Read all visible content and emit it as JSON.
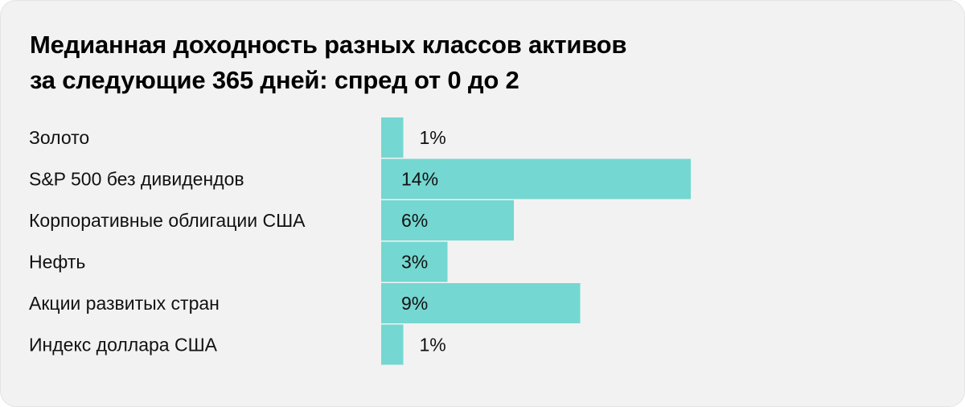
{
  "title_lines": [
    "Медианная доходность разных классов активов",
    "за следующие 365 дней: спред от 0 до 2"
  ],
  "colors": {
    "bar": "#75d7d1",
    "background": "#f2f2f2",
    "text": "#111111"
  },
  "chart_data": {
    "type": "bar",
    "orientation": "horizontal",
    "title": "Медианная доходность разных классов активов за следующие 365 дней: спред от 0 до 2",
    "categories": [
      "Золото",
      "S&P 500 без дивидендов",
      "Корпоративные облигации США",
      "Нефть",
      "Акции развитых стран",
      "Индекс доллара США"
    ],
    "values": [
      1,
      14,
      6,
      3,
      9,
      1
    ],
    "value_labels": [
      "1%",
      "14%",
      "6%",
      "3%",
      "9%",
      "1%"
    ],
    "unit": "%",
    "grid": false,
    "legend": "none"
  }
}
